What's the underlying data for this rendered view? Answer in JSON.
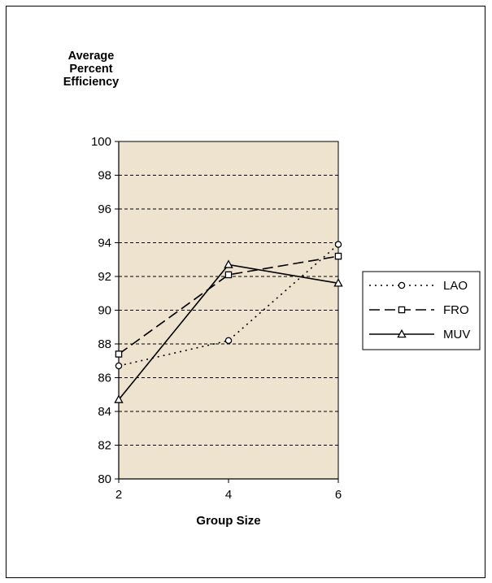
{
  "chart_data": {
    "type": "line",
    "title": "",
    "ylabel": "Average\nPercent\nEfficiency",
    "xlabel": "Group Size",
    "x": [
      2,
      4,
      6
    ],
    "xticks": [
      "2",
      "4",
      "6"
    ],
    "ylim": [
      80,
      100
    ],
    "yticks": [
      "80",
      "82",
      "84",
      "86",
      "88",
      "90",
      "92",
      "94",
      "96",
      "98",
      "100"
    ],
    "grid": true,
    "legend_position": "right",
    "plot_background": "#ede3ce",
    "series": [
      {
        "name": "LAO",
        "values": [
          86.7,
          88.2,
          93.9
        ],
        "line_style": "dotted",
        "marker": "circle"
      },
      {
        "name": "FRO",
        "values": [
          87.4,
          92.1,
          93.2
        ],
        "line_style": "dashed",
        "marker": "square"
      },
      {
        "name": "MUV",
        "values": [
          84.7,
          92.7,
          91.6
        ],
        "line_style": "solid",
        "marker": "triangle"
      }
    ]
  }
}
